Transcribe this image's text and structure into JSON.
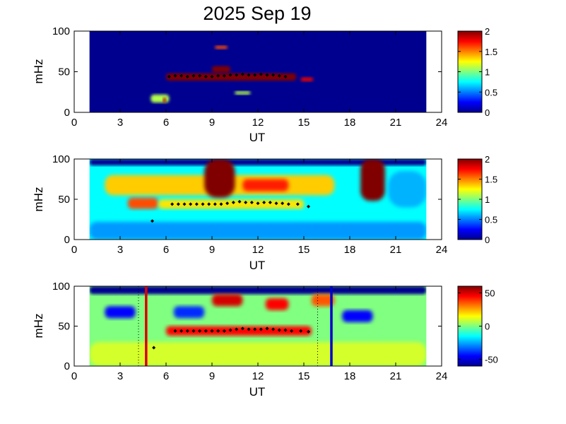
{
  "title": "2025 Sep 19",
  "colors": {
    "colormap": [
      "#00008f",
      "#0000ff",
      "#00ffff",
      "#ffff00",
      "#ff0000",
      "#800000"
    ],
    "marker": "#000000",
    "red_line": "#dd0000",
    "blue_line": "#0000cc"
  },
  "chart_data": [
    {
      "type": "heatmap",
      "xlabel": "UT",
      "ylabel": "mHz",
      "xlim": [
        0,
        24
      ],
      "ylim": [
        0,
        100
      ],
      "xticks": [
        "0",
        "3",
        "6",
        "9",
        "12",
        "15",
        "18",
        "21",
        "24"
      ],
      "yticks": [
        "0",
        "50",
        "100"
      ],
      "data_range_ut": [
        1.0,
        23.0
      ],
      "colorbar": {
        "range": [
          0,
          2
        ],
        "ticks": [
          "0",
          "0.5",
          "1",
          "1.5",
          "2"
        ]
      },
      "background_level": 0.0,
      "features": [
        {
          "ut": [
            5.0,
            6.2
          ],
          "mhz": [
            12,
            22
          ],
          "level": 1.1
        },
        {
          "ut": [
            5.8,
            6.0
          ],
          "mhz": [
            12,
            18
          ],
          "level": 1.9
        },
        {
          "ut": [
            6.0,
            14.5
          ],
          "mhz": [
            39,
            48
          ],
          "level": 2.0
        },
        {
          "ut": [
            9.0,
            10.2
          ],
          "mhz": [
            49,
            57
          ],
          "level": 2.0
        },
        {
          "ut": [
            9.2,
            10.0
          ],
          "mhz": [
            78,
            82
          ],
          "level": 1.6
        },
        {
          "ut": [
            14.8,
            15.6
          ],
          "mhz": [
            38,
            43
          ],
          "level": 1.8
        },
        {
          "ut": [
            10.5,
            11.5
          ],
          "mhz": [
            22,
            26
          ],
          "level": 1.1
        }
      ],
      "markers": {
        "ut": [
          6.2,
          6.6,
          7.0,
          7.4,
          7.8,
          8.2,
          8.6,
          9.0,
          9.4,
          9.8,
          10.2,
          10.6,
          11.0,
          11.4,
          11.8,
          12.2,
          12.6,
          13.0,
          13.4,
          13.8
        ],
        "mhz": [
          44,
          45,
          45,
          44,
          45,
          45,
          44,
          44,
          45,
          45,
          46,
          46,
          47,
          46,
          46,
          47,
          46,
          46,
          45,
          44
        ]
      }
    },
    {
      "type": "heatmap",
      "xlabel": "UT",
      "ylabel": "mHz",
      "xlim": [
        0,
        24
      ],
      "ylim": [
        0,
        100
      ],
      "xticks": [
        "0",
        "3",
        "6",
        "9",
        "12",
        "15",
        "18",
        "21",
        "24"
      ],
      "yticks": [
        "0",
        "50",
        "100"
      ],
      "data_range_ut": [
        1.0,
        23.0
      ],
      "colorbar": {
        "range": [
          0,
          2
        ],
        "ticks": [
          "0",
          "0.5",
          "1",
          "1.5",
          "2"
        ]
      },
      "background_level": 0.75,
      "features": [
        {
          "ut": [
            1.0,
            23.0
          ],
          "mhz": [
            92,
            100
          ],
          "level": 0.0
        },
        {
          "ut": [
            2.0,
            17.0
          ],
          "mhz": [
            55,
            80
          ],
          "level": 1.35
        },
        {
          "ut": [
            3.5,
            5.5
          ],
          "mhz": [
            38,
            52
          ],
          "level": 1.6
        },
        {
          "ut": [
            5.5,
            15.0
          ],
          "mhz": [
            38,
            50
          ],
          "level": 1.3
        },
        {
          "ut": [
            8.5,
            10.5
          ],
          "mhz": [
            52,
            100
          ],
          "level": 2.0
        },
        {
          "ut": [
            18.7,
            20.3
          ],
          "mhz": [
            48,
            100
          ],
          "level": 2.0
        },
        {
          "ut": [
            11.0,
            14.0
          ],
          "mhz": [
            60,
            75
          ],
          "level": 1.7
        },
        {
          "ut": [
            1.0,
            23.0
          ],
          "mhz": [
            0,
            22
          ],
          "level": 0.55
        },
        {
          "ut": [
            20.5,
            23.0
          ],
          "mhz": [
            40,
            85
          ],
          "level": 0.6
        }
      ],
      "markers": {
        "ut": [
          5.1,
          6.4,
          6.8,
          7.2,
          7.6,
          8.0,
          8.4,
          8.8,
          9.2,
          9.6,
          10.0,
          10.4,
          10.8,
          11.2,
          11.6,
          12.0,
          12.4,
          12.8,
          13.2,
          13.6,
          14.0,
          14.6,
          15.3
        ],
        "mhz": [
          23,
          44,
          44,
          44,
          44,
          44,
          44,
          44,
          44,
          44,
          45,
          46,
          47,
          46,
          46,
          45,
          46,
          46,
          45,
          45,
          44,
          44,
          41
        ]
      }
    },
    {
      "type": "heatmap",
      "xlabel": "UT",
      "ylabel": "mHz",
      "xlim": [
        0,
        24
      ],
      "ylim": [
        0,
        100
      ],
      "xticks": [
        "0",
        "3",
        "6",
        "9",
        "12",
        "15",
        "18",
        "21",
        "24"
      ],
      "yticks": [
        "0",
        "50",
        "100"
      ],
      "data_range_ut": [
        1.0,
        23.0
      ],
      "colorbar": {
        "range": [
          -60,
          60
        ],
        "ticks": [
          "50",
          "0",
          "-50"
        ]
      },
      "background_level": 0,
      "features": [
        {
          "ut": [
            1.0,
            23.0
          ],
          "mhz": [
            90,
            100
          ],
          "level": -60
        },
        {
          "ut": [
            6.0,
            15.5
          ],
          "mhz": [
            38,
            50
          ],
          "level": 45
        },
        {
          "ut": [
            9.0,
            11.0
          ],
          "mhz": [
            75,
            90
          ],
          "level": 50
        },
        {
          "ut": [
            2.0,
            4.0
          ],
          "mhz": [
            60,
            75
          ],
          "level": -45
        },
        {
          "ut": [
            12.5,
            14.0
          ],
          "mhz": [
            70,
            85
          ],
          "level": 45
        },
        {
          "ut": [
            17.5,
            19.5
          ],
          "mhz": [
            55,
            70
          ],
          "level": -45
        },
        {
          "ut": [
            6.5,
            8.5
          ],
          "mhz": [
            60,
            75
          ],
          "level": -40
        },
        {
          "ut": [
            15.5,
            17.0
          ],
          "mhz": [
            75,
            90
          ],
          "level": 35
        },
        {
          "ut": [
            1.0,
            23.0
          ],
          "mhz": [
            0,
            30
          ],
          "level": 10
        }
      ],
      "vertical_lines": [
        {
          "ut": 4.7,
          "color": "red"
        },
        {
          "ut": 16.8,
          "color": "blue"
        }
      ],
      "dotted_lines_ut": [
        4.2,
        15.9
      ],
      "markers": {
        "ut": [
          5.2,
          6.6,
          7.0,
          7.4,
          7.8,
          8.2,
          8.6,
          9.0,
          9.4,
          9.8,
          10.2,
          10.6,
          11.0,
          11.4,
          11.8,
          12.2,
          12.6,
          13.0,
          13.4,
          13.8,
          14.2,
          14.8,
          15.3
        ],
        "mhz": [
          23,
          44,
          44,
          44,
          44,
          44,
          44,
          44,
          44,
          44,
          45,
          46,
          47,
          46,
          46,
          46,
          47,
          46,
          45,
          45,
          44,
          44,
          43
        ]
      }
    }
  ]
}
